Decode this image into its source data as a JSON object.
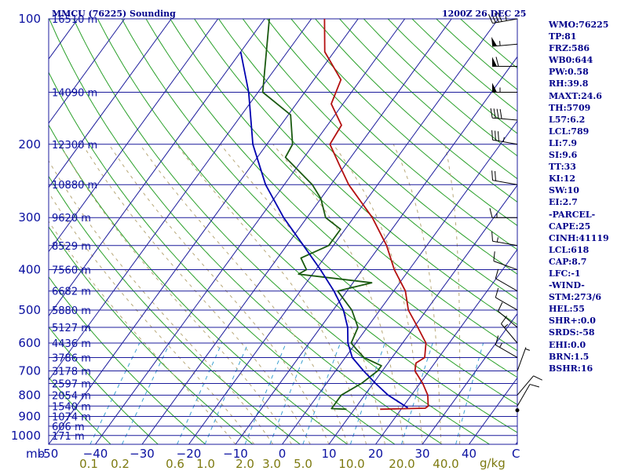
{
  "header": {
    "station": "MMCU (76225) Sounding",
    "datetime": "1200Z 26 DEC 25"
  },
  "indices": [
    "WMO:76225",
    "TP:81",
    "FRZ:586",
    "WB0:644",
    "PW:0.58",
    "RH:39.8",
    "MAXT:24.6",
    "TH:5709",
    "L57:6.2",
    "LCL:789",
    "LI:7.9",
    "SI:9.6",
    "TT:33",
    "KI:12",
    "SW:10",
    "EI:2.7",
    "-PARCEL-",
    "CAPE:25",
    "CINH:41119",
    "LCL:618",
    "CAP:8.7",
    "LFC:-1",
    "-WIND-",
    "STM:273/6",
    "HEL:55",
    "SHR+:0.0",
    "SRDS:-58",
    "EHI:0.0",
    "BRN:1.5",
    "BSHR:16"
  ],
  "colors": {
    "isobar": "#1c1c9c",
    "isotherm": "#1c1c9c",
    "dry_adiabat": "#2aa02a",
    "moist_adiabat": "#b8a878",
    "mixing_ratio": "#3aa0d0",
    "temperature": "#b41010",
    "dewpoint": "#1a5a10",
    "parcel": "#0000b0",
    "wind": "#000000"
  },
  "chart_data": {
    "type": "line",
    "title": "MMCU (76225) Sounding",
    "diagram": "skew-T log-P",
    "pressure_unit": "mb",
    "temperature_unit": "C",
    "mixing_ratio_unit": "g/kg",
    "xlabel_prefix": "mb",
    "pressure_ticks": [
      100,
      200,
      300,
      400,
      500,
      600,
      700,
      800,
      900,
      1000
    ],
    "temperature_ticks": [
      -50,
      -40,
      -30,
      -20,
      -10,
      0,
      10,
      20,
      30,
      40
    ],
    "temperature_tick_labels": [
      "-50",
      "−40",
      "−30",
      "−20",
      "−10",
      "0",
      "10",
      "20",
      "30",
      "40"
    ],
    "end_tick": "C",
    "mixing_ratio_ticks": [
      "0.1",
      "0.2",
      "0.6",
      "1.0",
      "2.0",
      "3.0",
      "5.0",
      "10.0",
      "20.0",
      "40.0"
    ],
    "mixing_ratio_unit_label": "g/kg",
    "height_levels": [
      {
        "p": 100,
        "label": "16510 m"
      },
      {
        "p": 150,
        "label": "14090 m"
      },
      {
        "p": 200,
        "label": "12300 m"
      },
      {
        "p": 250,
        "label": "10880 m"
      },
      {
        "p": 300,
        "label": "9620 m"
      },
      {
        "p": 350,
        "label": "8529 m"
      },
      {
        "p": 400,
        "label": "7560 m"
      },
      {
        "p": 450,
        "label": "6682 m"
      },
      {
        "p": 500,
        "label": "5880 m"
      },
      {
        "p": 550,
        "label": "5127 m"
      },
      {
        "p": 600,
        "label": "4436 m"
      },
      {
        "p": 650,
        "label": "3786 m"
      },
      {
        "p": 700,
        "label": "3178 m"
      },
      {
        "p": 750,
        "label": "2597 m"
      },
      {
        "p": 800,
        "label": "2054 m"
      },
      {
        "p": 850,
        "label": "1540 m"
      },
      {
        "p": 900,
        "label": "1074 m"
      },
      {
        "p": 950,
        "label": "606 m"
      },
      {
        "p": 1000,
        "label": "171 m"
      }
    ],
    "axis": {
      "p_top": 100,
      "p_bottom": 1050,
      "t_left_at_bottom": -50,
      "t_right_at_bottom": 50
    },
    "series": [
      {
        "name": "Temperature",
        "points": [
          [
            865,
            15.5
          ],
          [
            860,
            25.0
          ],
          [
            850,
            25.3
          ],
          [
            800,
            23.5
          ],
          [
            750,
            20.6
          ],
          [
            700,
            17.0
          ],
          [
            670,
            16.0
          ],
          [
            650,
            17.0
          ],
          [
            600,
            15.0
          ],
          [
            550,
            10.8
          ],
          [
            500,
            6.1
          ],
          [
            450,
            2.5
          ],
          [
            400,
            -3.2
          ],
          [
            350,
            -8.6
          ],
          [
            300,
            -16.0
          ],
          [
            250,
            -26.2
          ],
          [
            225,
            -31.1
          ],
          [
            200,
            -36.5
          ],
          [
            180,
            -37.0
          ],
          [
            160,
            -42.5
          ],
          [
            140,
            -44.2
          ],
          [
            120,
            -52.0
          ],
          [
            100,
            -57.2
          ]
        ]
      },
      {
        "name": "Dewpoint",
        "points": [
          [
            865,
            8.3
          ],
          [
            862,
            5.0
          ],
          [
            850,
            5.0
          ],
          [
            800,
            5.0
          ],
          [
            750,
            7.5
          ],
          [
            700,
            9.0
          ],
          [
            680,
            9.0
          ],
          [
            650,
            4.0
          ],
          [
            620,
            1.0
          ],
          [
            600,
            -1.0
          ],
          [
            550,
            -2.0
          ],
          [
            500,
            -6.0
          ],
          [
            450,
            -12.0
          ],
          [
            430,
            -6.0
          ],
          [
            410,
            -23.0
          ],
          [
            400,
            -22.0
          ],
          [
            375,
            -25.0
          ],
          [
            350,
            -21.0
          ],
          [
            320,
            -21.0
          ],
          [
            300,
            -26.0
          ],
          [
            270,
            -30.0
          ],
          [
            250,
            -34.0
          ],
          [
            215,
            -44.0
          ],
          [
            200,
            -44.5
          ],
          [
            170,
            -49.5
          ],
          [
            150,
            -59.0
          ],
          [
            100,
            -69.0
          ]
        ]
      },
      {
        "name": "Parcel",
        "points": [
          [
            858,
            21.2
          ],
          [
            800,
            15.0
          ],
          [
            750,
            10.5
          ],
          [
            700,
            6.0
          ],
          [
            650,
            1.5
          ],
          [
            600,
            -1.7
          ],
          [
            550,
            -4.2
          ],
          [
            500,
            -7.8
          ],
          [
            450,
            -12.8
          ],
          [
            400,
            -19.0
          ],
          [
            350,
            -26.4
          ],
          [
            300,
            -35.0
          ],
          [
            250,
            -44.0
          ],
          [
            200,
            -53.0
          ],
          [
            150,
            -62.0
          ],
          [
            120,
            -70.0
          ]
        ]
      }
    ],
    "winds": [
      {
        "p": 870,
        "dir": 270,
        "spd": 0
      },
      {
        "p": 850,
        "dir": 30,
        "spd": 10
      },
      {
        "p": 800,
        "dir": 40,
        "spd": 10
      },
      {
        "p": 700,
        "dir": 20,
        "spd": 5
      },
      {
        "p": 650,
        "dir": 300,
        "spd": 15
      },
      {
        "p": 600,
        "dir": 320,
        "spd": 15
      },
      {
        "p": 550,
        "dir": 310,
        "spd": 10
      },
      {
        "p": 500,
        "dir": 300,
        "spd": 10
      },
      {
        "p": 450,
        "dir": 300,
        "spd": 10
      },
      {
        "p": 400,
        "dir": 290,
        "spd": 10
      },
      {
        "p": 350,
        "dir": 280,
        "spd": 15
      },
      {
        "p": 300,
        "dir": 270,
        "spd": 15
      },
      {
        "p": 250,
        "dir": 280,
        "spd": 20
      },
      {
        "p": 200,
        "dir": 280,
        "spd": 35
      },
      {
        "p": 175,
        "dir": 275,
        "spd": 40
      },
      {
        "p": 150,
        "dir": 270,
        "spd": 55
      },
      {
        "p": 130,
        "dir": 270,
        "spd": 60
      },
      {
        "p": 115,
        "dir": 265,
        "spd": 55
      },
      {
        "p": 100,
        "dir": 260,
        "spd": 45
      }
    ]
  }
}
